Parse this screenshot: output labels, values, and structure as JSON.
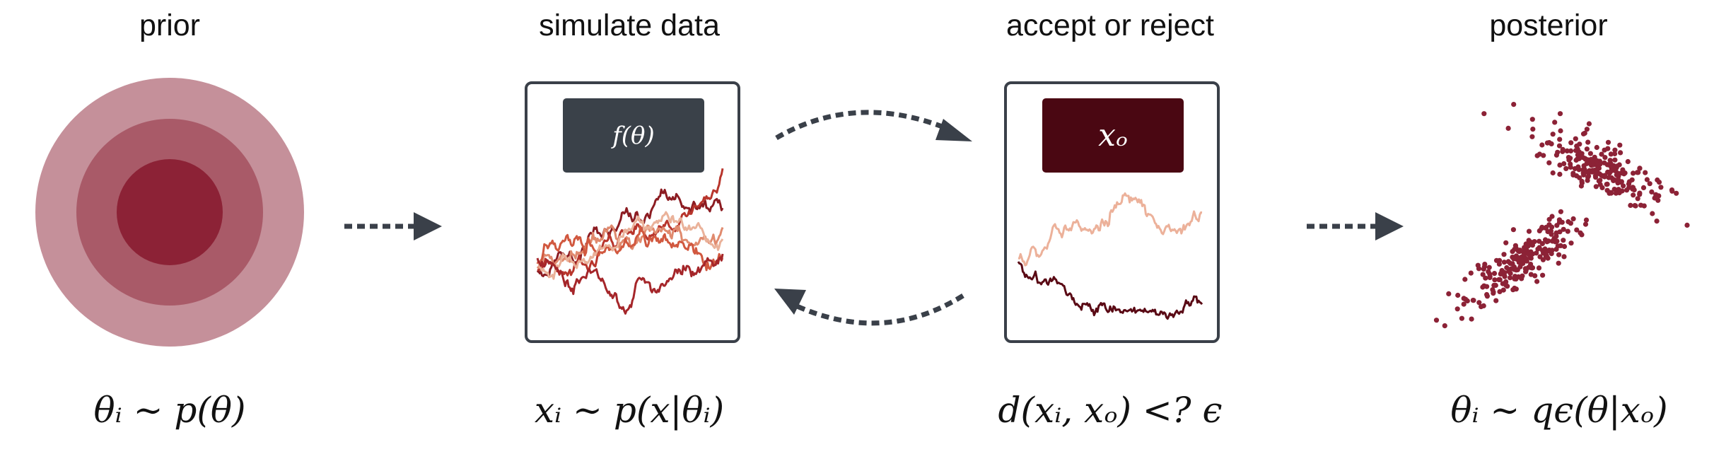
{
  "titles": {
    "prior": "prior",
    "simulate": "simulate data",
    "accept": "accept or reject",
    "posterior": "posterior"
  },
  "formulas": {
    "prior": "θᵢ ∼ p(θ)",
    "simulate": "xᵢ ∼ p(x|θᵢ)",
    "accept": "d(xᵢ, xₒ) <? ϵ",
    "posterior": "θᵢ ∼ qϵ(θ|xₒ)"
  },
  "boxes": {
    "simulator": "f(θ)",
    "observed": "xₒ"
  },
  "colors": {
    "prior_outer": "#c5909a",
    "prior_mid": "#a95a68",
    "prior_inner": "#8c2236",
    "arrow": "#3a4049",
    "sim_box": "#3a4149",
    "obs_box": "#4a0712",
    "posterior_points": "#8c2236"
  }
}
